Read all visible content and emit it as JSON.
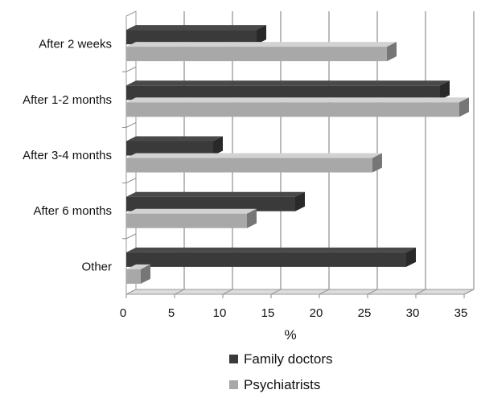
{
  "chart_data": {
    "type": "bar",
    "orientation": "horizontal",
    "three_d": true,
    "categories": [
      "After 2 weeks",
      "After 1-2 months",
      "After 3-4 months",
      "After 6 months",
      "Other"
    ],
    "series": [
      {
        "name": "Family doctors",
        "color": "#3a3a3a",
        "values": [
          13.5,
          32.5,
          9,
          17.5,
          29
        ]
      },
      {
        "name": "Psychiatrists",
        "color": "#a8a8a8",
        "values": [
          27,
          34.5,
          25.5,
          12.5,
          1.5
        ]
      }
    ],
    "xlabel": "%",
    "xlim": [
      0,
      35
    ],
    "xticks": [
      0,
      5,
      10,
      15,
      20,
      25,
      30,
      35
    ],
    "grid": true,
    "legend_position": "bottom"
  }
}
